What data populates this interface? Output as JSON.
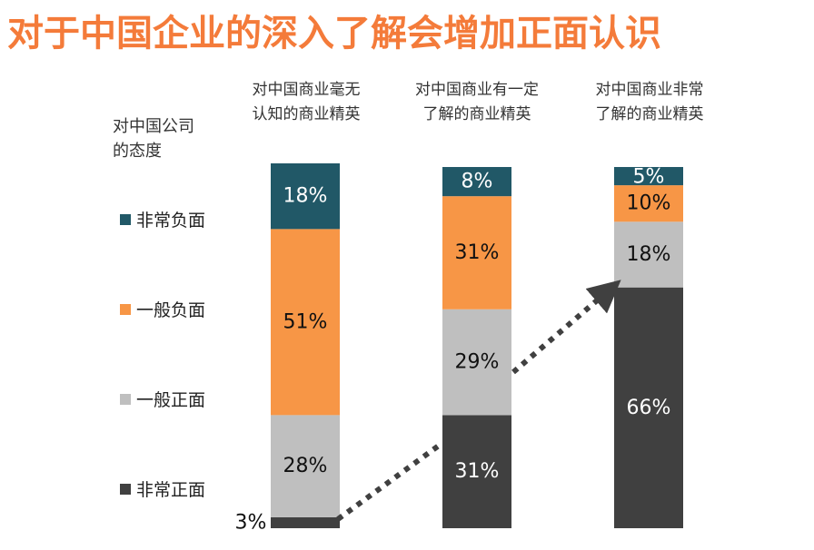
{
  "title": "对于中国企业的深入了解会增加正面认识",
  "legend": {
    "title_line1": "对中国公司",
    "title_line2": "的态度",
    "items": [
      {
        "label": "非常负面",
        "color": "#215867"
      },
      {
        "label": "一般负面",
        "color": "#f79646"
      },
      {
        "label": "一般正面",
        "color": "#bfbfbf"
      },
      {
        "label": "非常正面",
        "color": "#404040"
      }
    ]
  },
  "columns": [
    {
      "line1": "对中国商业毫无",
      "line2": "认知的商业精英"
    },
    {
      "line1": "对中国商业有一定",
      "line2": "了解的商业精英"
    },
    {
      "line1": "对中国商业非常",
      "line2": "了解的商业精英"
    }
  ],
  "chart_data": {
    "type": "bar",
    "stacked": true,
    "unit": "%",
    "categories": [
      "对中国商业毫无认知的商业精英",
      "对中国商业有一定了解的商业精英",
      "对中国商业非常了解的商业精英"
    ],
    "series": [
      {
        "name": "非常正面",
        "color": "#404040",
        "values": [
          3,
          31,
          66
        ],
        "labels": [
          "3%",
          "31%",
          "66%"
        ]
      },
      {
        "name": "一般正面",
        "color": "#bfbfbf",
        "values": [
          28,
          29,
          18
        ],
        "labels": [
          "28%",
          "29%",
          "18%"
        ]
      },
      {
        "name": "一般负面",
        "color": "#f79646",
        "values": [
          51,
          31,
          10
        ],
        "labels": [
          "51%",
          "31%",
          "10%"
        ]
      },
      {
        "name": "非常负面",
        "color": "#215867",
        "values": [
          18,
          8,
          5
        ],
        "labels": [
          "18%",
          "8%",
          "5%"
        ]
      }
    ],
    "ylim": [
      0,
      100
    ],
    "legend_position": "left",
    "grid": false,
    "trend_arrow": "dotted"
  }
}
